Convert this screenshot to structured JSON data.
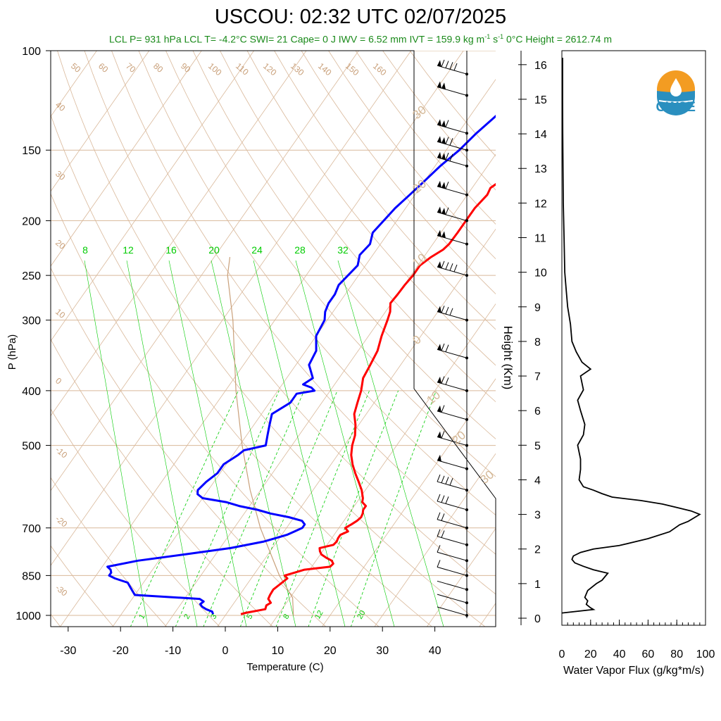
{
  "header": {
    "title": "USCOU: 02:32 UTC 02/07/2025",
    "stats": "LCL P= 931 hPa  LCL T= -4.2°C  SWI= 21  Cape= 0 J  IWV = 6.52 mm  IVT = 159.9 kg m",
    "stats_exp1": "-1",
    "stats_mid": " s",
    "stats_exp2": "-1",
    "stats_tail": "  0°C Height = 2612.74 m"
  },
  "logo": {
    "text": "CW3E",
    "icon": "water-drop-sun-logo"
  },
  "colors": {
    "temperature": "#ff0000",
    "dewpoint": "#0000ff",
    "adiabats": "#d9b89a",
    "mixing_ratio": "#00cc00",
    "flux": "#000000"
  },
  "chart_data": [
    {
      "type": "line",
      "title": "Skew-T log-P",
      "xlabel": "Temperature (C)",
      "ylabel": "P (hPa)",
      "yscale": "log",
      "ylim": [
        100,
        1050
      ],
      "xlim": [
        -34,
        50
      ],
      "x_ticks": [
        "-30",
        "-20",
        "-10",
        "0",
        "10",
        "20",
        "30",
        "40"
      ],
      "y_ticks": [
        "100",
        "150",
        "200",
        "250",
        "300",
        "400",
        "500",
        "700",
        "850",
        "1000"
      ],
      "mixing_ratio_labels_top": [
        "8",
        "12",
        "16",
        "20",
        "24",
        "28",
        "32"
      ],
      "mixing_ratio_labels_bottom": [
        "1",
        "2",
        "3",
        "5",
        "8",
        "12",
        "20"
      ],
      "dry_adiabat_labels": [
        "50",
        "60",
        "70",
        "80",
        "90",
        "100",
        "110",
        "120",
        "130",
        "140",
        "150",
        "160"
      ],
      "isotherm_labels": [
        "40",
        "30",
        "20",
        "10",
        "0",
        "-10",
        "-20",
        "-30"
      ],
      "wind_labels": [
        "30",
        "20",
        "10",
        "0",
        "10",
        "20",
        "30"
      ],
      "series": [
        {
          "name": "Temperature",
          "pressure": [
            995,
            990,
            975,
            960,
            950,
            935,
            920,
            900,
            880,
            860,
            850,
            840,
            830,
            820,
            810,
            800,
            790,
            780,
            770,
            760,
            750,
            740,
            730,
            720,
            710,
            700,
            690,
            680,
            670,
            660,
            650,
            640,
            630,
            620,
            600,
            580,
            560,
            540,
            520,
            500,
            480,
            460,
            440,
            420,
            400,
            380,
            360,
            340,
            320,
            300,
            290,
            280,
            270,
            260,
            250,
            240,
            232,
            225,
            220,
            210,
            200,
            190,
            180,
            175,
            170,
            160,
            155,
            150,
            145,
            140,
            135,
            130,
            125,
            120,
            115,
            110,
            105,
            100
          ],
          "temperature": [
            2.8,
            3.5,
            6.8,
            6.5,
            7.0,
            6.0,
            5.8,
            5.7,
            6.3,
            6.9,
            6.0,
            7.5,
            9.0,
            13.5,
            13.7,
            13.0,
            11.5,
            10.2,
            9.5,
            9.0,
            11.2,
            11.4,
            11.2,
            11.2,
            12.2,
            11.2,
            11.9,
            12.5,
            12.8,
            12.6,
            12.2,
            12.2,
            11.0,
            10.6,
            9.3,
            7.6,
            5.8,
            4.1,
            2.6,
            1.5,
            0.7,
            -0.6,
            -2.3,
            -3.2,
            -4.1,
            -5.4,
            -5.8,
            -6.3,
            -7.5,
            -8.5,
            -9.1,
            -10.2,
            -10.0,
            -9.9,
            -9.6,
            -9.6,
            -8.6,
            -7.3,
            -6.9,
            -6.8,
            -6.8,
            -6.8,
            -6.2,
            -6.5,
            -5.5,
            -4.9,
            -4.1,
            -3.9,
            -2.6,
            -1.3,
            -1.1,
            -0.4,
            0.4,
            0.4,
            0.4,
            0.7,
            0.7,
            0.8
          ]
        },
        {
          "name": "Dewpoint",
          "pressure": [
            995,
            985,
            975,
            965,
            955,
            945,
            935,
            920,
            905,
            890,
            875,
            860,
            850,
            840,
            830,
            820,
            800,
            780,
            760,
            740,
            720,
            710,
            700,
            690,
            680,
            670,
            660,
            650,
            640,
            630,
            620,
            610,
            600,
            580,
            560,
            540,
            520,
            510,
            500,
            480,
            460,
            440,
            420,
            405,
            400,
            395,
            390,
            380,
            360,
            340,
            320,
            300,
            290,
            280,
            270,
            260,
            250,
            240,
            230,
            220,
            210,
            200,
            190,
            180,
            170,
            160,
            150,
            140,
            130,
            120,
            110,
            105,
            100
          ],
          "dewpoint": [
            -2.5,
            -3.0,
            -4.5,
            -5.6,
            -6.3,
            -6.0,
            -7.1,
            -20.0,
            -21.0,
            -22.0,
            -23.0,
            -26.0,
            -27.5,
            -27.5,
            -28.0,
            -29.0,
            -24.0,
            -16.0,
            -8.0,
            -2.5,
            1.0,
            2.0,
            3.0,
            3.0,
            2.0,
            -1.0,
            -5.0,
            -8.0,
            -12.0,
            -15.0,
            -20.0,
            -21.5,
            -22.0,
            -21.5,
            -20.5,
            -20.5,
            -19.0,
            -18.5,
            -15.0,
            -16.0,
            -17.0,
            -18.0,
            -16.0,
            -16.0,
            -13.0,
            -14.0,
            -16.0,
            -15.0,
            -17.5,
            -18.0,
            -20.0,
            -20.5,
            -21.5,
            -22.0,
            -22.0,
            -22.5,
            -22.0,
            -21.5,
            -22.5,
            -22.0,
            -23.0,
            -22.5,
            -22.0,
            -21.0,
            -20.0,
            -19.0,
            -17.5,
            -16.5,
            -15.0,
            -14.0,
            -13.0,
            -12.5,
            -11.5
          ]
        },
        {
          "name": "Parcel",
          "pressure": [
            1000,
            931,
            850,
            700,
            600,
            500,
            400,
            300,
            250,
            232
          ],
          "temperature": [
            13.0,
            10.5,
            5.0,
            -5.0,
            -12.0,
            -19.5,
            -28.0,
            -38.0,
            -45.0,
            -47.0
          ]
        }
      ],
      "wind_barbs": {
        "pressure": [
          1000,
          950,
          900,
          850,
          800,
          750,
          700,
          650,
          600,
          550,
          500,
          450,
          400,
          350,
          300,
          250,
          220,
          200,
          180,
          160,
          150,
          140,
          120,
          110
        ],
        "speed_kt": [
          5,
          5,
          5,
          10,
          15,
          20,
          25,
          35,
          45,
          55,
          60,
          65,
          70,
          75,
          85,
          95,
          105,
          110,
          115,
          120,
          125,
          115,
          105,
          95
        ]
      }
    },
    {
      "type": "line",
      "title": "",
      "xlabel": "Water Vapor Flux (g/kg*m/s)",
      "ylabel": "Height (Km)",
      "xlim": [
        0,
        100
      ],
      "ylim": [
        0,
        16
      ],
      "x_ticks": [
        "0",
        "20",
        "40",
        "60",
        "80",
        "100"
      ],
      "y_ticks": [
        "0",
        "1",
        "2",
        "3",
        "4",
        "5",
        "6",
        "7",
        "8",
        "9",
        "10",
        "11",
        "12",
        "13",
        "14",
        "15",
        "16"
      ],
      "series": [
        {
          "name": "Water Vapor Flux",
          "height_km": [
            0.15,
            0.25,
            0.3,
            0.4,
            0.5,
            0.6,
            0.8,
            1.0,
            1.1,
            1.2,
            1.3,
            1.4,
            1.5,
            1.6,
            1.7,
            1.8,
            1.9,
            2.0,
            2.1,
            2.3,
            2.5,
            2.7,
            2.8,
            2.9,
            3.0,
            3.1,
            3.2,
            3.3,
            3.4,
            3.5,
            3.6,
            3.7,
            3.8,
            4.0,
            4.3,
            4.6,
            5.0,
            5.3,
            5.6,
            6.0,
            6.3,
            6.6,
            7.0,
            7.2,
            7.4,
            7.7,
            8.0,
            8.5,
            9.0,
            9.5,
            10.0,
            11.0,
            12.0,
            13.0,
            14.0,
            15.0,
            16.2
          ],
          "flux": [
            0,
            22,
            20,
            17,
            18,
            16,
            18,
            24,
            28,
            30,
            32,
            22,
            15,
            9,
            7,
            8,
            13,
            22,
            40,
            60,
            75,
            82,
            88,
            92,
            96,
            90,
            80,
            70,
            55,
            35,
            28,
            22,
            15,
            12,
            13,
            13,
            11,
            15,
            16,
            13,
            11,
            15,
            13,
            20,
            14,
            10,
            7,
            6,
            4,
            3,
            2,
            1.5,
            1,
            0.8,
            0.6,
            0.5,
            0.5
          ]
        }
      ]
    }
  ]
}
